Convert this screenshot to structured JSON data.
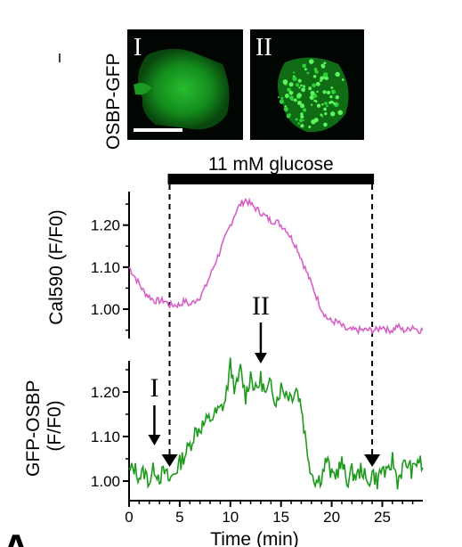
{
  "micrograph": {
    "row_label": "OSBP-GFP",
    "panels": [
      {
        "label": "I",
        "state": "before glucose",
        "has_scale_bar": true
      },
      {
        "label": "II",
        "state": "during glucose",
        "has_scale_bar": false
      }
    ],
    "colors": {
      "background": "#020602",
      "cell": "#1fb82a"
    }
  },
  "stimulus": {
    "label": "11 mM glucose",
    "start_min": 4,
    "end_min": 24
  },
  "panel_letter": "A",
  "chart_data": {
    "type": "line",
    "xlabel": "Time (min)",
    "xlim": [
      0,
      29
    ],
    "x_ticks": [
      0,
      5,
      10,
      15,
      20,
      25
    ],
    "charts": [
      {
        "id": "cal590",
        "ylabel": "Cal590 (F/F0)",
        "ylim": [
          0.93,
          1.28
        ],
        "y_ticks": [
          1.0,
          1.1,
          1.2
        ],
        "y_tick_labels": [
          "1.00",
          "1.10",
          "1.20"
        ],
        "color": "#d760c8",
        "series": [
          {
            "x": [
              0,
              0.5,
              1,
              1.5,
              2,
              2.5,
              3,
              3.5,
              4,
              4.5,
              5,
              5.5,
              6,
              6.5,
              7,
              7.5,
              8,
              8.5,
              9,
              9.5,
              10,
              10.5,
              11,
              11.5,
              12,
              12.5,
              13,
              13.5,
              14,
              14.5,
              15,
              15.5,
              16,
              16.5,
              17,
              17.5,
              18,
              18.5,
              19,
              19.5,
              20,
              20.5,
              21,
              21.5,
              22,
              22.5,
              23,
              23.5,
              24,
              24.5,
              25,
              25.5,
              26,
              26.5,
              27,
              27.5,
              28,
              28.5,
              29
            ],
            "y": [
              1.1,
              1.08,
              1.06,
              1.04,
              1.03,
              1.02,
              1.02,
              1.02,
              1.01,
              1.01,
              1.01,
              1.02,
              1.01,
              1.02,
              1.03,
              1.05,
              1.08,
              1.11,
              1.14,
              1.17,
              1.2,
              1.23,
              1.25,
              1.26,
              1.25,
              1.24,
              1.23,
              1.22,
              1.21,
              1.21,
              1.2,
              1.19,
              1.17,
              1.15,
              1.12,
              1.09,
              1.06,
              1.03,
              1.0,
              0.98,
              0.97,
              0.97,
              0.96,
              0.95,
              0.95,
              0.95,
              0.95,
              0.95,
              0.95,
              0.95,
              0.96,
              0.95,
              0.95,
              0.96,
              0.95,
              0.95,
              0.96,
              0.95,
              0.95
            ]
          }
        ]
      },
      {
        "id": "gfp_osbp",
        "ylabel": "GFP-OSBP (F/F0)",
        "ylabel_lines": [
          "GFP-OSBP",
          "(F/F0)"
        ],
        "ylim": [
          0.97,
          1.27
        ],
        "y_ticks": [
          1.0,
          1.1,
          1.2
        ],
        "y_tick_labels": [
          "1.00",
          "1.10",
          "1.20"
        ],
        "color": "#1e9a1e",
        "series": [
          {
            "x": [
              0,
              0.5,
              1,
              1.5,
              2,
              2.5,
              3,
              3.5,
              4,
              4.5,
              5,
              5.5,
              6,
              6.5,
              7,
              7.5,
              8,
              8.5,
              9,
              9.5,
              10,
              10.5,
              11,
              11.5,
              12,
              12.5,
              13,
              13.5,
              14,
              14.5,
              15,
              15.5,
              16,
              16.5,
              17,
              17.5,
              18,
              18.5,
              19,
              19.5,
              20,
              20.5,
              21,
              21.5,
              22,
              22.5,
              23,
              23.5,
              24,
              24.5,
              25,
              25.5,
              26,
              26.5,
              27,
              27.5,
              28,
              28.5,
              29
            ],
            "y": [
              1.02,
              1.03,
              1.01,
              1.02,
              1.0,
              1.03,
              1.01,
              1.02,
              1.0,
              1.02,
              1.04,
              1.06,
              1.08,
              1.11,
              1.12,
              1.13,
              1.14,
              1.15,
              1.16,
              1.18,
              1.26,
              1.2,
              1.25,
              1.19,
              1.24,
              1.2,
              1.23,
              1.19,
              1.22,
              1.18,
              1.21,
              1.2,
              1.19,
              1.21,
              1.17,
              1.08,
              1.02,
              1.0,
              1.01,
              1.05,
              1.01,
              1.02,
              1.04,
              1.0,
              1.02,
              1.01,
              1.03,
              0.99,
              1.02,
              1.0,
              1.03,
              1.01,
              1.05,
              1.0,
              1.03,
              1.04,
              1.02,
              1.05,
              1.03
            ]
          }
        ]
      }
    ],
    "annotations": [
      {
        "text": "I",
        "chart": "gfp_osbp",
        "x": 2.5,
        "kind": "arrow-down"
      },
      {
        "text": "II",
        "chart": "cal590",
        "x": 13,
        "kind": "arrow-down"
      }
    ],
    "markers": [
      {
        "chart": "gfp_osbp",
        "x": 4,
        "kind": "triangle-down"
      },
      {
        "chart": "gfp_osbp",
        "x": 24,
        "kind": "triangle-down"
      }
    ]
  }
}
